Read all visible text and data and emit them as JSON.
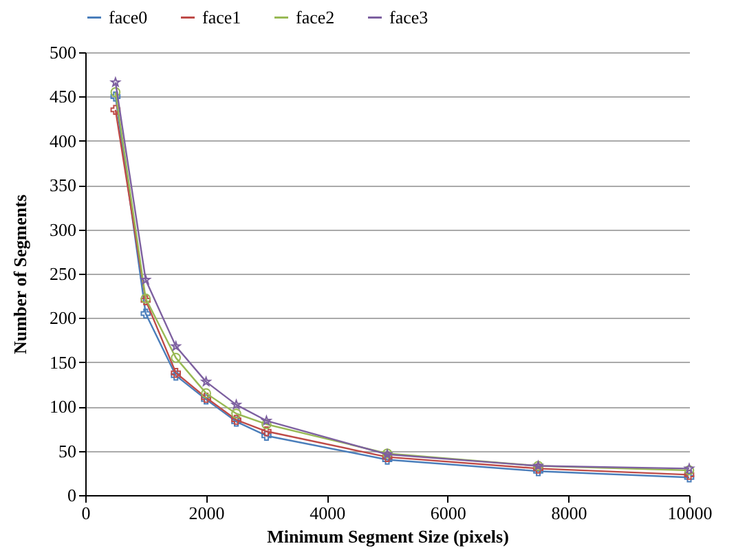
{
  "chart_data": {
    "type": "line",
    "xlabel": "Minimum Segment Size (pixels)",
    "ylabel": "Number of Segments",
    "x": [
      500,
      1000,
      1500,
      2000,
      2500,
      3000,
      5000,
      7500,
      10000
    ],
    "series": [
      {
        "name": "face0",
        "color": "#4a7ebb",
        "marker": "cross",
        "values": [
          450,
          205,
          135,
          108,
          83,
          67,
          40,
          27,
          20
        ]
      },
      {
        "name": "face1",
        "color": "#be4b48",
        "marker": "cross",
        "values": [
          435,
          220,
          138,
          110,
          85,
          72,
          43,
          30,
          23
        ]
      },
      {
        "name": "face2",
        "color": "#98b954",
        "marker": "circle",
        "values": [
          455,
          222,
          155,
          115,
          92,
          80,
          47,
          33,
          28
        ]
      },
      {
        "name": "face3",
        "color": "#7d60a0",
        "marker": "star",
        "values": [
          466,
          243,
          168,
          128,
          102,
          84,
          46,
          33,
          30
        ]
      }
    ],
    "xlim": [
      0,
      10000
    ],
    "xticks": [
      0,
      2000,
      4000,
      6000,
      8000,
      10000
    ],
    "ylim": [
      0,
      500
    ],
    "yticks": [
      0,
      50,
      100,
      150,
      200,
      250,
      300,
      350,
      400,
      450,
      500
    ],
    "grid": "y",
    "legend": "top",
    "line_style": "solid"
  }
}
